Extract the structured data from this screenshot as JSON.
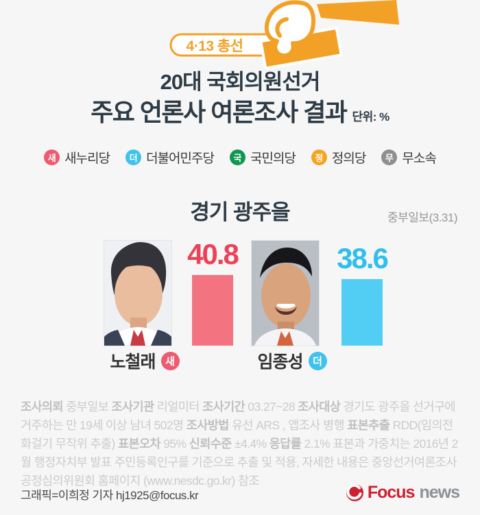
{
  "page": {
    "background": "#f6f6f6"
  },
  "badge": {
    "label": "4·13 총선",
    "accent_color": "#f2a126",
    "icon": "hand-casting-ballot-icon"
  },
  "title": {
    "line1": "20대 국회의원선거",
    "line2": "주요 언론사 여론조사 결과",
    "unit": "단위: %"
  },
  "legend": {
    "items": [
      {
        "initial": "새",
        "label": "새누리당",
        "color": "#ee5a6e"
      },
      {
        "initial": "더",
        "label": "더불어민주당",
        "color": "#3fc3ee"
      },
      {
        "initial": "국",
        "label": "국민의당",
        "color": "#0e9750"
      },
      {
        "initial": "정",
        "label": "정의당",
        "color": "#f5a41d"
      },
      {
        "initial": "무",
        "label": "무소속",
        "color": "#8f8f8f"
      }
    ]
  },
  "section": {
    "region": "경기 광주을",
    "source": "중부일보(3.31)"
  },
  "chart_data": {
    "type": "bar",
    "title": "경기 광주을",
    "subtitle": "중부일보(3.31)",
    "unit": "%",
    "categories": [
      "노철래",
      "임종성"
    ],
    "values": [
      40.8,
      38.6
    ],
    "bar_colors": [
      "#f37480",
      "#52cdf4"
    ],
    "value_colors": [
      "#ed4157",
      "#2fbfee"
    ],
    "ylim": [
      0,
      45
    ],
    "grid": false,
    "legend_position": "none"
  },
  "candidates": [
    {
      "name": "노철래",
      "party_initial": "새",
      "party": "새누리당",
      "value": "40.8",
      "party_color": "#ee5a6e"
    },
    {
      "name": "임종성",
      "party_initial": "더",
      "party": "더불어민주당",
      "value": "38.6",
      "party_color": "#3fc3ee"
    }
  ],
  "footnote": {
    "segments": [
      {
        "bold": true,
        "text": "조사의뢰"
      },
      {
        "bold": false,
        "text": " 중부일보 "
      },
      {
        "bold": true,
        "text": "조사기관"
      },
      {
        "bold": false,
        "text": " 리얼미터 "
      },
      {
        "bold": true,
        "text": "조사기간"
      },
      {
        "bold": false,
        "text": " 03.27~28 "
      },
      {
        "bold": true,
        "text": "조사대상"
      },
      {
        "bold": false,
        "text": " 경기도 광주을 선거구에 거주하는 만 19세 이상 남녀 502명 "
      },
      {
        "bold": true,
        "text": "조사방법"
      },
      {
        "bold": false,
        "text": " 유선 ARS , 앱조사 병행 "
      },
      {
        "bold": true,
        "text": "표본추출"
      },
      {
        "bold": false,
        "text": " RDD(임의전화걸기 무작위 추출) "
      },
      {
        "bold": true,
        "text": "표본오차"
      },
      {
        "bold": false,
        "text": " 95% "
      },
      {
        "bold": true,
        "text": "신뢰수준"
      },
      {
        "bold": false,
        "text": " ±4.4% "
      },
      {
        "bold": true,
        "text": "응답률"
      },
      {
        "bold": false,
        "text": " 2.1% 표본과 가중치는 2016년 2월 행정자치부 발표 주민등록인구를 기준으로 추출 및 적용, 자세한 내용은 중앙선거여론조사공정심의위원회 홈페이지 (www.nesdc.go.kr) 참조"
      }
    ]
  },
  "credit": "그래픽=이희정 기자 hj1925@focus.kr",
  "logo": {
    "brand": "Focus",
    "suffix": "news",
    "brand_color": "#ce2030",
    "suffix_color": "#8b9298"
  }
}
